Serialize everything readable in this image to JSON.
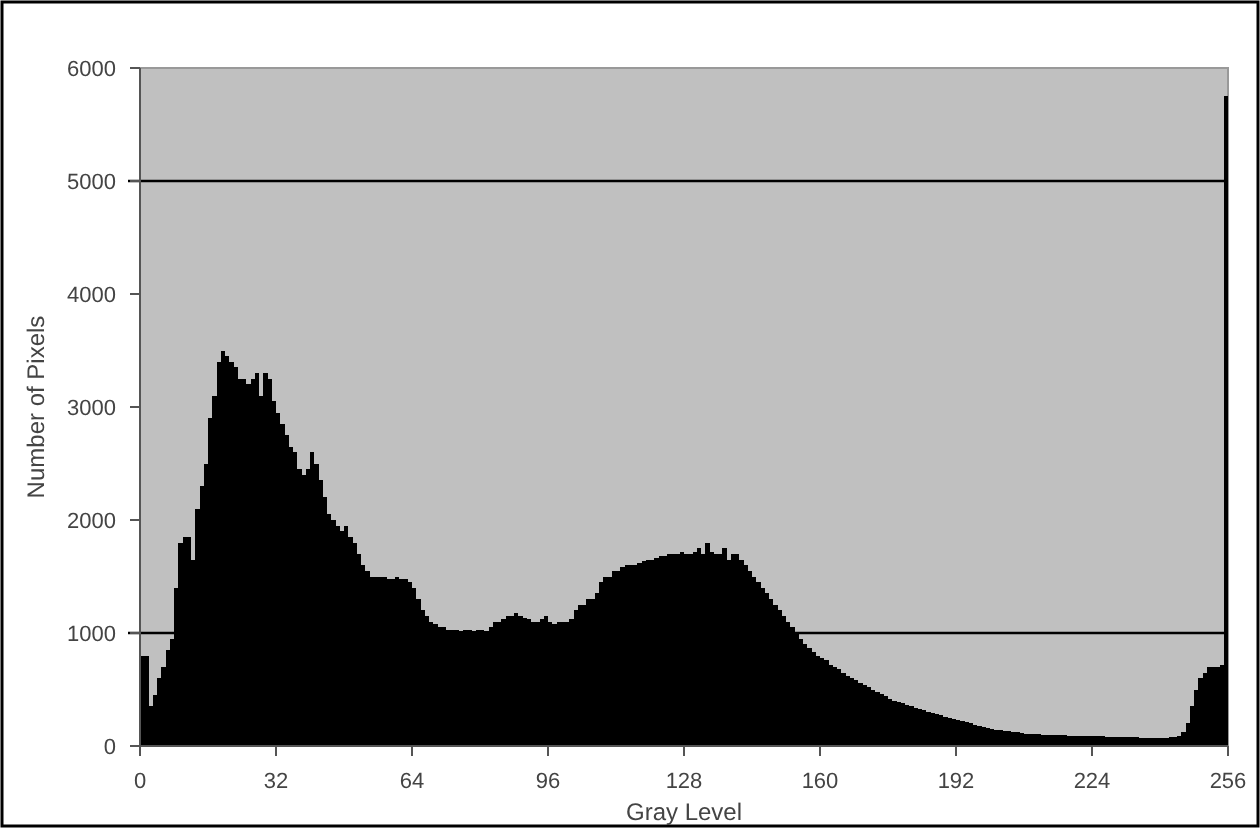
{
  "chart_data": {
    "type": "histogram",
    "xlabel": "Gray Level",
    "ylabel": "Number of Pixels",
    "color": "#000000",
    "bins": [
      0,
      1,
      2,
      3,
      4,
      5,
      6,
      7,
      8,
      9,
      10,
      11,
      12,
      13,
      14,
      15,
      16,
      17,
      18,
      19,
      20,
      21,
      22,
      23,
      24,
      25,
      26,
      27,
      28,
      29,
      30,
      31,
      32,
      33,
      34,
      35,
      36,
      37,
      38,
      39,
      40,
      41,
      42,
      43,
      44,
      45,
      46,
      47,
      48,
      49,
      50,
      51,
      52,
      53,
      54,
      55,
      56,
      57,
      58,
      59,
      60,
      61,
      62,
      63,
      64,
      65,
      66,
      67,
      68,
      69,
      70,
      71,
      72,
      73,
      74,
      75,
      76,
      77,
      78,
      79,
      80,
      81,
      82,
      83,
      84,
      85,
      86,
      87,
      88,
      89,
      90,
      91,
      92,
      93,
      94,
      95,
      96,
      97,
      98,
      99,
      100,
      101,
      102,
      103,
      104,
      105,
      106,
      107,
      108,
      109,
      110,
      111,
      112,
      113,
      114,
      115,
      116,
      117,
      118,
      119,
      120,
      121,
      122,
      123,
      124,
      125,
      126,
      127,
      128,
      129,
      130,
      131,
      132,
      133,
      134,
      135,
      136,
      137,
      138,
      139,
      140,
      141,
      142,
      143,
      144,
      145,
      146,
      147,
      148,
      149,
      150,
      151,
      152,
      153,
      154,
      155,
      156,
      157,
      158,
      159,
      160,
      161,
      162,
      163,
      164,
      165,
      166,
      167,
      168,
      169,
      170,
      171,
      172,
      173,
      174,
      175,
      176,
      177,
      178,
      179,
      180,
      181,
      182,
      183,
      184,
      185,
      186,
      187,
      188,
      189,
      190,
      191,
      192,
      193,
      194,
      195,
      196,
      197,
      198,
      199,
      200,
      201,
      202,
      203,
      204,
      205,
      206,
      207,
      208,
      209,
      210,
      211,
      212,
      213,
      214,
      215,
      216,
      217,
      218,
      219,
      220,
      221,
      222,
      223,
      224,
      225,
      226,
      227,
      228,
      229,
      230,
      231,
      232,
      233,
      234,
      235,
      236,
      237,
      238,
      239,
      240,
      241,
      242,
      243,
      244,
      245,
      246,
      247,
      248,
      249,
      250,
      251,
      252,
      253,
      254,
      255,
      256
    ],
    "values": [
      800,
      800,
      350,
      450,
      600,
      700,
      850,
      950,
      1400,
      1800,
      1850,
      1850,
      1650,
      2100,
      2300,
      2500,
      2900,
      3100,
      3400,
      3500,
      3450,
      3400,
      3350,
      3250,
      3250,
      3200,
      3250,
      3300,
      3100,
      3300,
      3250,
      3050,
      2950,
      2850,
      2750,
      2650,
      2600,
      2450,
      2400,
      2450,
      2600,
      2500,
      2350,
      2200,
      2050,
      2000,
      1950,
      1900,
      1950,
      1850,
      1800,
      1700,
      1600,
      1550,
      1500,
      1500,
      1500,
      1500,
      1480,
      1480,
      1500,
      1480,
      1480,
      1450,
      1400,
      1300,
      1200,
      1150,
      1100,
      1080,
      1050,
      1050,
      1030,
      1030,
      1030,
      1020,
      1030,
      1030,
      1020,
      1030,
      1030,
      1020,
      1050,
      1100,
      1100,
      1120,
      1150,
      1150,
      1180,
      1150,
      1130,
      1120,
      1100,
      1100,
      1120,
      1150,
      1100,
      1080,
      1100,
      1100,
      1100,
      1120,
      1200,
      1250,
      1250,
      1300,
      1300,
      1350,
      1450,
      1500,
      1500,
      1550,
      1550,
      1580,
      1600,
      1600,
      1600,
      1620,
      1640,
      1650,
      1650,
      1660,
      1680,
      1680,
      1700,
      1700,
      1700,
      1720,
      1700,
      1700,
      1720,
      1750,
      1700,
      1800,
      1720,
      1700,
      1700,
      1750,
      1650,
      1700,
      1700,
      1650,
      1600,
      1550,
      1500,
      1450,
      1400,
      1350,
      1300,
      1250,
      1200,
      1150,
      1100,
      1050,
      1000,
      950,
      900,
      870,
      830,
      800,
      780,
      760,
      720,
      700,
      680,
      650,
      620,
      600,
      580,
      560,
      540,
      520,
      500,
      480,
      460,
      440,
      420,
      400,
      390,
      380,
      360,
      350,
      340,
      330,
      320,
      300,
      290,
      280,
      270,
      260,
      250,
      240,
      230,
      220,
      210,
      200,
      190,
      180,
      170,
      160,
      150,
      145,
      140,
      135,
      130,
      125,
      120,
      115,
      110,
      110,
      105,
      105,
      100,
      100,
      100,
      95,
      95,
      95,
      90,
      90,
      90,
      90,
      90,
      85,
      85,
      85,
      85,
      80,
      80,
      80,
      80,
      80,
      80,
      80,
      80,
      75,
      75,
      75,
      75,
      75,
      75,
      75,
      80,
      80,
      90,
      120,
      200,
      350,
      500,
      600,
      650,
      700,
      700,
      700,
      720,
      5750
    ],
    "xlim": [
      0,
      256
    ],
    "xticks": [
      0,
      32,
      64,
      96,
      128,
      160,
      192,
      224,
      256
    ],
    "ylim": [
      0,
      6000
    ],
    "yticks": [
      0,
      1000,
      2000,
      3000,
      4000,
      5000,
      6000
    ],
    "grid": false,
    "ref_lines": [
      {
        "axis": "y",
        "value": 1000,
        "color": "#000000"
      },
      {
        "axis": "y",
        "value": 5000,
        "color": "#000000"
      }
    ]
  }
}
